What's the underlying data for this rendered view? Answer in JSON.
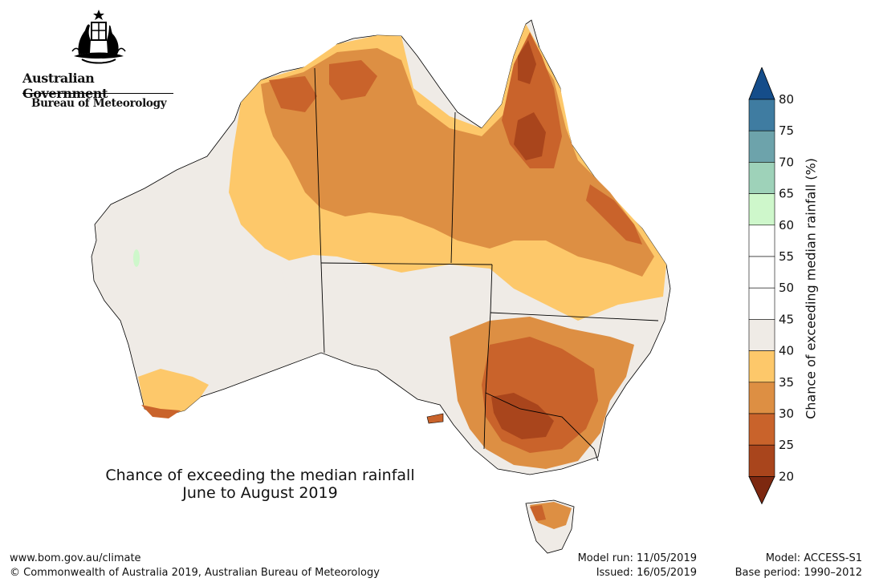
{
  "branding": {
    "government": "Australian Government",
    "bureau": "Bureau of Meteorology"
  },
  "map": {
    "title_line1": "Chance of exceeding the median rainfall",
    "title_line2": "June to August 2019"
  },
  "legend": {
    "label": "Chance of exceeding median rainfall (%)",
    "ticks": [
      "20",
      "25",
      "30",
      "35",
      "40",
      "45",
      "50",
      "55",
      "60",
      "65",
      "70",
      "75",
      "80"
    ],
    "bins": [
      {
        "range": "20-25",
        "color": "#a9451c"
      },
      {
        "range": "25-30",
        "color": "#c9632b"
      },
      {
        "range": "30-35",
        "color": "#dd8f43"
      },
      {
        "range": "35-40",
        "color": "#fdc86a"
      },
      {
        "range": "40-45",
        "color": "#efebe6"
      },
      {
        "range": "45-50",
        "color": "#ffffff"
      },
      {
        "range": "50-55",
        "color": "#ffffff"
      },
      {
        "range": "55-60",
        "color": "#ffffff"
      },
      {
        "range": "60-65",
        "color": "#cef7cb"
      },
      {
        "range": "65-70",
        "color": "#9ed2b9"
      },
      {
        "range": "70-75",
        "color": "#6da3ab"
      },
      {
        "range": "75-80",
        "color": "#3f7ca1"
      }
    ],
    "below_color": "#7d2810",
    "above_color": "#154d8a"
  },
  "footer": {
    "website": "www.bom.gov.au/climate",
    "copyright": "© Commonwealth of Australia 2019, Australian Bureau of Meteorology",
    "model_run": "Model run: 11/05/2019",
    "issued": "Issued: 16/05/2019",
    "model": "Model: ACCESS-S1",
    "base_period": "Base period: 1990–2012"
  }
}
